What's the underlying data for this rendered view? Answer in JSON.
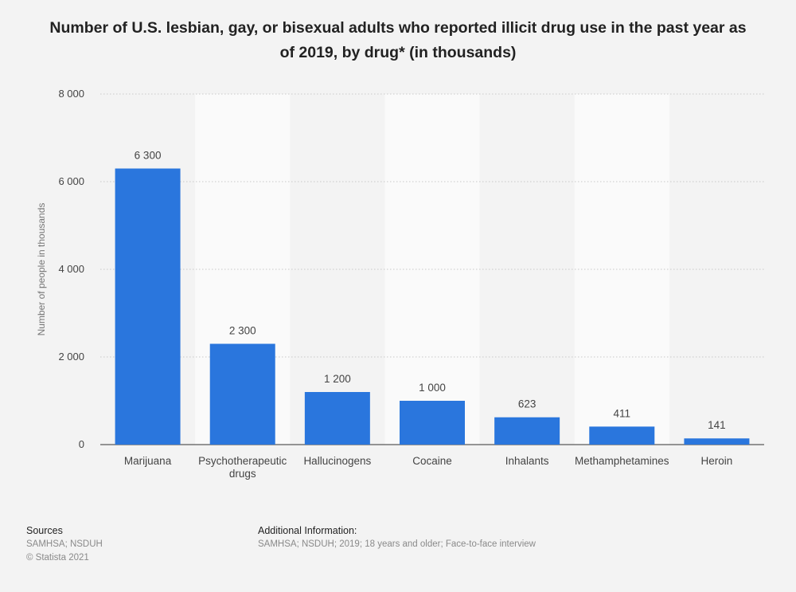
{
  "title": "Number of U.S. lesbian, gay, or bisexual adults who reported illicit drug use in the past year as of 2019, by drug* (in thousands)",
  "chart_data": {
    "type": "bar",
    "categories": [
      "Marijuana",
      "Psychotherapeutic drugs",
      "Hallucinogens",
      "Cocaine",
      "Inhalants",
      "Methamphetamines",
      "Heroin"
    ],
    "values": [
      6300,
      2300,
      1200,
      1000,
      623,
      411,
      141
    ],
    "value_labels": [
      "6 300",
      "2 300",
      "1 200",
      "1 000",
      "623",
      "411",
      "141"
    ],
    "ylabel": "Number of people in thousands",
    "ylim": [
      0,
      8000
    ],
    "yticks": [
      0,
      2000,
      4000,
      6000,
      8000
    ],
    "ytick_labels": [
      "0",
      "2 000",
      "4 000",
      "6 000",
      "8 000"
    ],
    "grid": true,
    "bar_color": "#2a76dd"
  },
  "footer": {
    "sources_heading": "Sources",
    "sources_lines": [
      "SAMHSA; NSDUH",
      "© Statista 2021"
    ],
    "additional_heading": "Additional Information:",
    "additional_text": "SAMHSA; NSDUH; 2019; 18 years and older; Face-to-face interview"
  }
}
